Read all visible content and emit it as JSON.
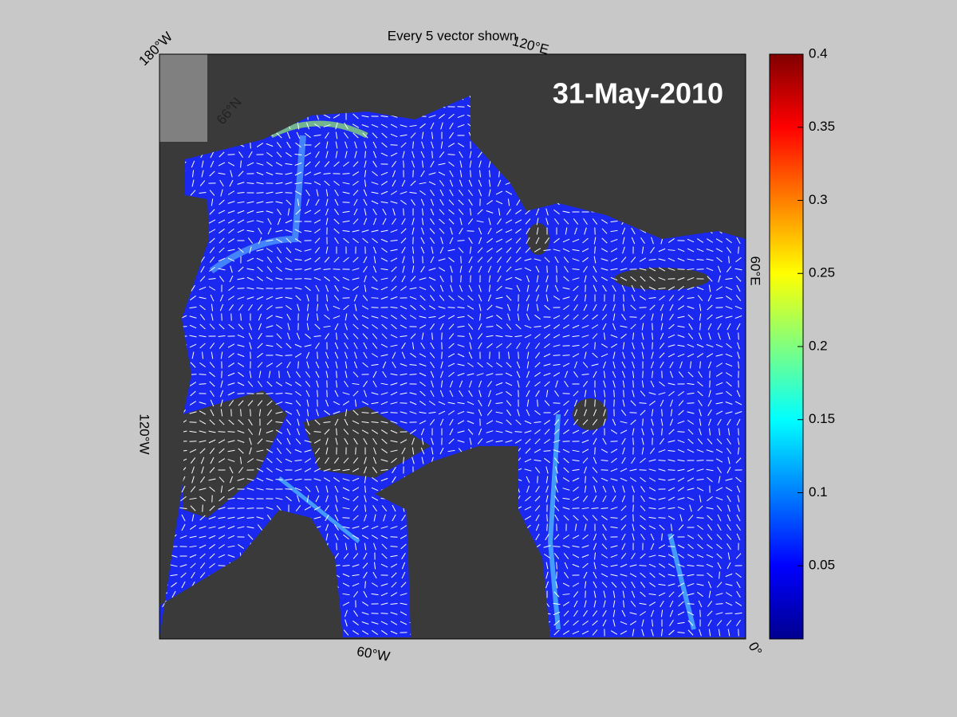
{
  "figure": {
    "title": "Every 5 vector shown",
    "date": "31-May-2010",
    "map_labels": [
      "180°W",
      "120°E",
      "66°N",
      "60°E",
      "0°",
      "60°W",
      "120°W"
    ],
    "colorbar": {
      "lim": [
        0,
        0.4
      ],
      "ticks": [
        0.05,
        0.1,
        0.15,
        0.2,
        0.25,
        0.3,
        0.35,
        0.4
      ]
    }
  }
}
